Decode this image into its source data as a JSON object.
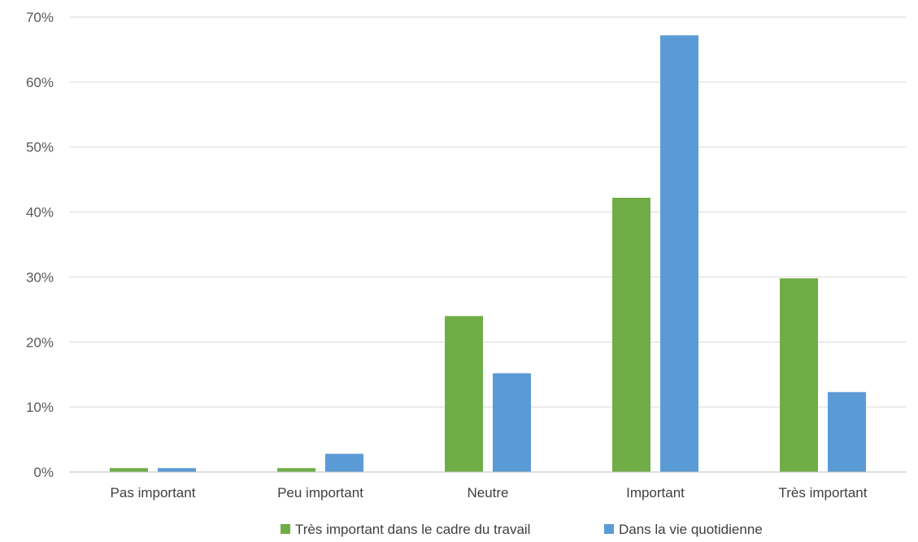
{
  "chart_data": {
    "type": "bar",
    "categories": [
      "Pas important",
      "Peu important",
      "Neutre",
      "Important",
      "Très important"
    ],
    "series": [
      {
        "name": "Très important dans le cadre du travail",
        "color": "#70ad47",
        "values": [
          0.6,
          0.6,
          24.0,
          42.2,
          29.8
        ]
      },
      {
        "name": "Dans la vie quotidienne",
        "color": "#5b9bd5",
        "values": [
          0.6,
          2.8,
          15.2,
          67.2,
          12.3
        ]
      }
    ],
    "ylim": [
      0,
      70
    ],
    "yticks": [
      "0%",
      "10%",
      "20%",
      "30%",
      "40%",
      "50%",
      "60%",
      "70%"
    ],
    "grid": true,
    "legend_position": "bottom"
  }
}
